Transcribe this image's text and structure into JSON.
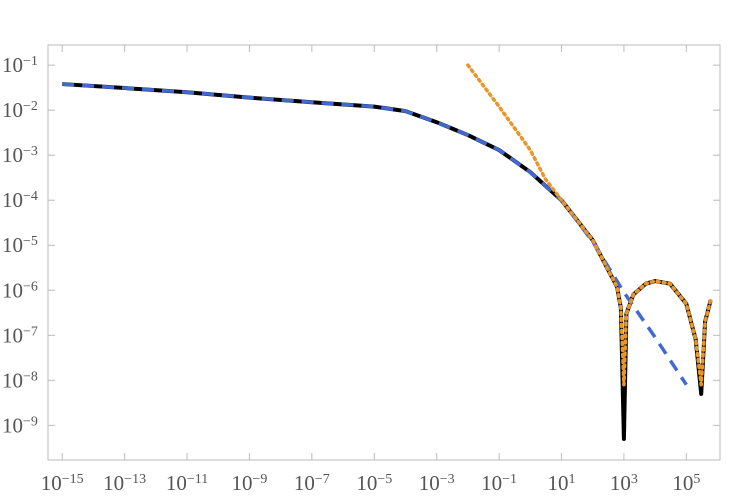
{
  "chart_data": {
    "type": "line",
    "log_x": true,
    "log_y": true,
    "xlim": [
      3.5e-16,
      1200000.0
    ],
    "ylim": [
      1.7e-10,
      0.28
    ],
    "xticks": [
      {
        "value": 1e-15,
        "label": "10−15"
      },
      {
        "value": 1e-13,
        "label": "10−13"
      },
      {
        "value": 1e-11,
        "label": "10−11"
      },
      {
        "value": 1e-09,
        "label": "10−9"
      },
      {
        "value": 1e-07,
        "label": "10−7"
      },
      {
        "value": 1e-05,
        "label": "10−5"
      },
      {
        "value": 0.001,
        "label": "10−3"
      },
      {
        "value": 0.1,
        "label": "10−1"
      },
      {
        "value": 10,
        "label": "101"
      },
      {
        "value": 1000,
        "label": "103"
      },
      {
        "value": 100000,
        "label": "105"
      }
    ],
    "yticks": [
      {
        "value": 0.1,
        "label": "10−1"
      },
      {
        "value": 0.01,
        "label": "10−2"
      },
      {
        "value": 0.001,
        "label": "10−3"
      },
      {
        "value": 0.0001,
        "label": "10−4"
      },
      {
        "value": 1e-05,
        "label": "10−5"
      },
      {
        "value": 1e-06,
        "label": "10−6"
      },
      {
        "value": 1e-07,
        "label": "10−7"
      },
      {
        "value": 1e-08,
        "label": "10−8"
      },
      {
        "value": 1e-09,
        "label": "10−9"
      }
    ],
    "series": [
      {
        "color": "#000000",
        "dash": "solid",
        "x": [
          1e-15,
          1e-13,
          1e-11,
          1e-09,
          1e-07,
          1e-05,
          0.0001,
          0.001,
          0.01,
          0.1,
          1,
          10,
          100,
          300,
          600,
          800,
          1000,
          1200,
          2000,
          5000,
          10000,
          30000,
          100000,
          200000,
          300000,
          400000,
          600000
        ],
        "values": [
          0.038,
          0.031,
          0.025,
          0.019,
          0.015,
          0.012,
          0.0095,
          0.0054,
          0.0028,
          0.0013,
          0.00042,
          0.0001,
          1.3e-05,
          3e-06,
          1.2e-06,
          4e-07,
          5e-10,
          3e-07,
          8e-07,
          1.4e-06,
          1.6e-06,
          1.4e-06,
          5e-07,
          8e-08,
          5e-09,
          2e-07,
          6e-07
        ]
      },
      {
        "color": "#4169d1",
        "dash": "dashed",
        "x": [
          1e-15,
          1e-13,
          1e-11,
          1e-09,
          1e-07,
          1e-05,
          0.0001,
          0.001,
          0.01,
          0.1,
          1,
          10,
          100,
          1000,
          10000,
          100000
        ],
        "values": [
          0.038,
          0.031,
          0.025,
          0.019,
          0.015,
          0.012,
          0.0095,
          0.0054,
          0.0028,
          0.0013,
          0.00042,
          0.0001,
          1.2e-05,
          9e-07,
          9e-08,
          8e-09
        ]
      },
      {
        "color": "#e8952a",
        "dash": "dotted",
        "x": [
          0.01,
          0.1,
          1,
          3,
          10,
          100,
          300,
          600,
          800,
          1000,
          1200,
          2000,
          5000,
          10000,
          30000,
          100000,
          200000,
          300000,
          400000,
          600000
        ],
        "values": [
          0.1,
          0.012,
          0.0013,
          0.0003,
          0.0001,
          1.3e-05,
          3e-06,
          1.2e-06,
          4e-07,
          8e-09,
          3e-07,
          8e-07,
          1.4e-06,
          1.6e-06,
          1.4e-06,
          5e-07,
          8e-08,
          8e-09,
          2e-07,
          6e-07
        ]
      }
    ]
  }
}
